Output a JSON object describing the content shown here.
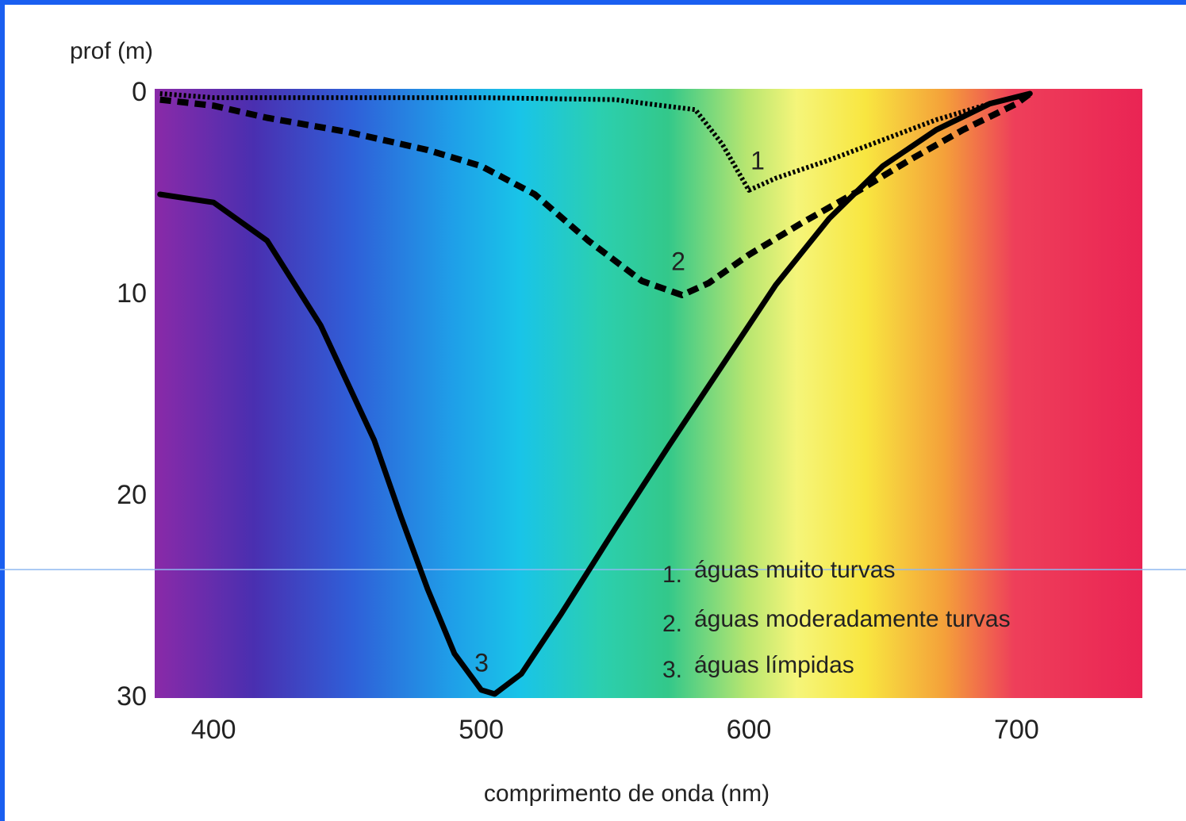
{
  "chart_data": {
    "type": "line",
    "x_label": "comprimento de onda (nm)",
    "y_label": "prof (m)",
    "xlim": [
      378,
      747
    ],
    "ylim": [
      0,
      30
    ],
    "y_inverted": true,
    "xticks": [
      400,
      500,
      600,
      700
    ],
    "yticks": [
      0,
      10,
      20,
      30
    ],
    "series": [
      {
        "name": "águas muito turvas",
        "label": "1",
        "legend_number": "1.",
        "color": "#000000",
        "style": "dotted",
        "x": [
          380,
          400,
          450,
          500,
          550,
          580,
          590,
          600,
          610,
          630,
          650,
          670,
          690,
          705
        ],
        "values": [
          0,
          0.2,
          0.2,
          0.2,
          0.3,
          0.8,
          2.5,
          4.8,
          4.2,
          3.3,
          2.3,
          1.3,
          0.5,
          0
        ]
      },
      {
        "name": "águas moderadamente turvas",
        "label": "2",
        "legend_number": "2.",
        "color": "#000000",
        "style": "dashed",
        "x": [
          380,
          400,
          420,
          450,
          480,
          500,
          520,
          540,
          560,
          575,
          585,
          600,
          620,
          640,
          660,
          680,
          700,
          705
        ],
        "values": [
          0.3,
          0.6,
          1.2,
          1.9,
          2.8,
          3.6,
          5.0,
          7.3,
          9.3,
          10.0,
          9.4,
          8.0,
          6.4,
          4.9,
          3.3,
          1.8,
          0.5,
          0
        ]
      },
      {
        "name": "águas límpidas",
        "label": "3",
        "legend_number": "3.",
        "color": "#000000",
        "style": "solid",
        "x": [
          380,
          400,
          420,
          440,
          460,
          470,
          480,
          490,
          500,
          505,
          515,
          530,
          550,
          570,
          590,
          610,
          630,
          650,
          670,
          690,
          705
        ],
        "values": [
          5,
          5.4,
          7.3,
          11.5,
          17.2,
          21,
          24.6,
          27.8,
          29.6,
          29.8,
          28.8,
          25.8,
          21.6,
          17.5,
          13.5,
          9.5,
          6.2,
          3.6,
          1.8,
          0.5,
          0
        ]
      }
    ]
  }
}
